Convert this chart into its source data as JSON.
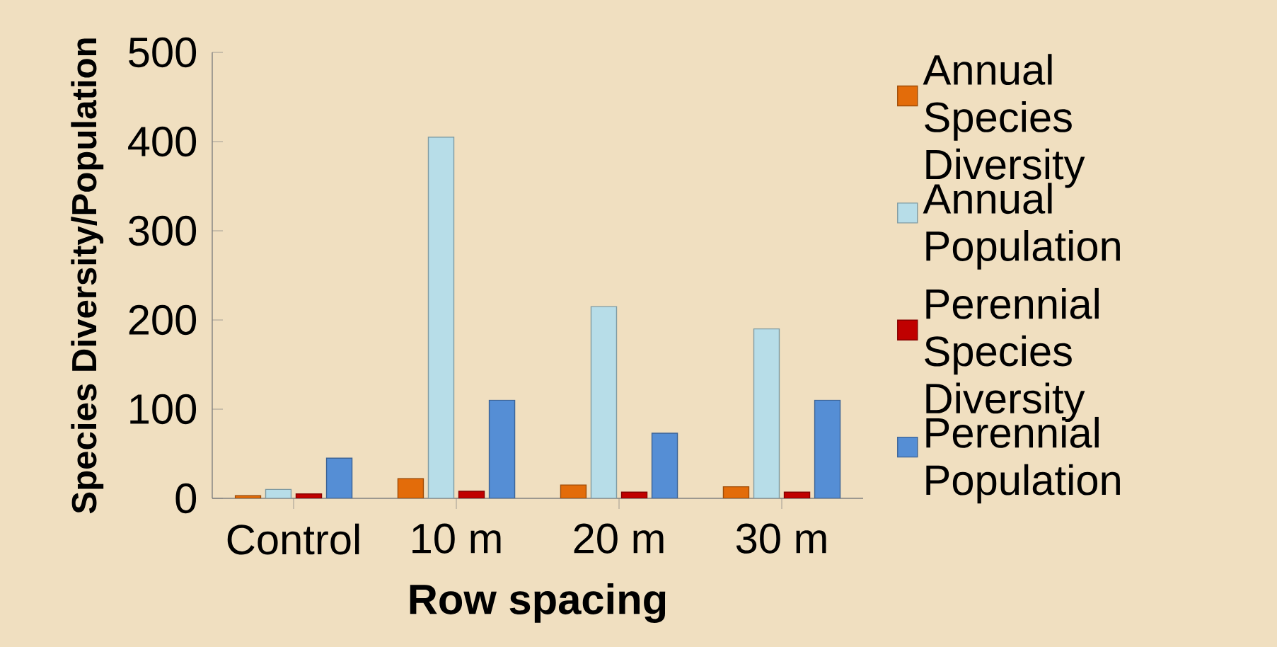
{
  "chart_data": {
    "type": "bar",
    "xlabel": "Row spacing",
    "ylabel": "Species Diversity/Population",
    "categories": [
      "Control",
      "10 m",
      "20 m",
      "30 m"
    ],
    "series": [
      {
        "name": "Annual Species Diversity",
        "color": "#e36c0a",
        "values": [
          3,
          22,
          15,
          13
        ]
      },
      {
        "name": "Annual Population",
        "color": "#b7dde8",
        "values": [
          10,
          405,
          215,
          190
        ]
      },
      {
        "name": "Perennial Species Diversity",
        "color": "#c00000",
        "values": [
          5,
          8,
          7,
          7
        ]
      },
      {
        "name": "Perennial Population",
        "color": "#558ed5",
        "values": [
          45,
          110,
          73,
          110
        ]
      }
    ],
    "ylim": [
      0,
      500
    ],
    "yticks": [
      0,
      100,
      200,
      300,
      400,
      500
    ],
    "grid": false,
    "legend": "right"
  }
}
